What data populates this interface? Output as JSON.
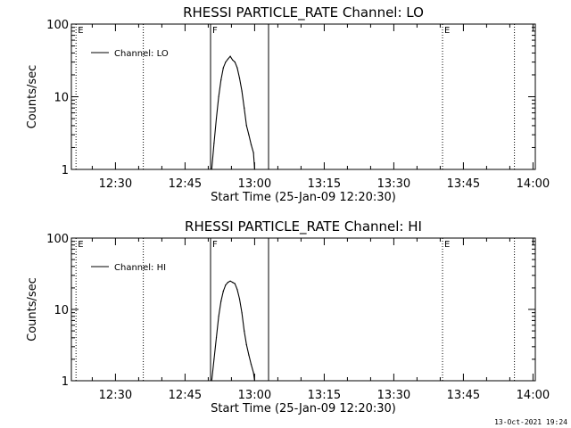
{
  "footer_timestamp": "13-Oct-2021 19:24",
  "chart_data": [
    {
      "type": "line",
      "title": "RHESSI PARTICLE_RATE Channel: LO",
      "xlabel": "Start Time (25-Jan-09 12:20:30)",
      "ylabel": "Counts/sec",
      "yscale": "log",
      "ylim": [
        1,
        100
      ],
      "yticks": [
        "1",
        "10",
        "100"
      ],
      "xlim": [
        "12:20:30",
        "14:00:30"
      ],
      "xticks": [
        "12:30",
        "12:45",
        "13:00",
        "13:15",
        "13:30",
        "13:45",
        "14:00"
      ],
      "legend": {
        "position": "top-left",
        "entries": [
          "Channel: LO"
        ]
      },
      "grid": false,
      "markers": [
        {
          "time": "12:21:30",
          "label": "E",
          "style": "dotted"
        },
        {
          "time": "12:36:00",
          "label": "",
          "style": "dotted"
        },
        {
          "time": "12:50:30",
          "label": "F",
          "style": "solid"
        },
        {
          "time": "13:03:00",
          "label": "",
          "style": "solid"
        },
        {
          "time": "13:40:30",
          "label": "E",
          "style": "dotted"
        },
        {
          "time": "13:56:00",
          "label": "",
          "style": "dotted"
        }
      ],
      "series": [
        {
          "name": "Channel: LO",
          "x": [
            "12:50:45",
            "12:51:15",
            "12:51:45",
            "12:52:15",
            "12:52:45",
            "12:53:15",
            "12:53:45",
            "12:54:15",
            "12:54:45",
            "12:55:15",
            "12:55:45",
            "12:56:15",
            "12:56:45",
            "12:57:15",
            "12:57:45",
            "12:58:15",
            "12:58:45",
            "12:59:15",
            "12:59:45",
            "13:00:00"
          ],
          "values": [
            1,
            2.3,
            5,
            10,
            17,
            25,
            30,
            33,
            36,
            32,
            30,
            25,
            18,
            12,
            7,
            4,
            3,
            2.2,
            1.7,
            1
          ]
        }
      ]
    },
    {
      "type": "line",
      "title": "RHESSI PARTICLE_RATE Channel: HI",
      "xlabel": "Start Time (25-Jan-09 12:20:30)",
      "ylabel": "Counts/sec",
      "yscale": "log",
      "ylim": [
        1,
        100
      ],
      "yticks": [
        "1",
        "10",
        "100"
      ],
      "xlim": [
        "12:20:30",
        "14:00:30"
      ],
      "xticks": [
        "12:30",
        "12:45",
        "13:00",
        "13:15",
        "13:30",
        "13:45",
        "14:00"
      ],
      "legend": {
        "position": "top-left",
        "entries": [
          "Channel: HI"
        ]
      },
      "grid": false,
      "markers": [
        {
          "time": "12:21:30",
          "label": "E",
          "style": "dotted"
        },
        {
          "time": "12:36:00",
          "label": "",
          "style": "dotted"
        },
        {
          "time": "12:50:30",
          "label": "F",
          "style": "solid"
        },
        {
          "time": "13:03:00",
          "label": "",
          "style": "solid"
        },
        {
          "time": "13:40:30",
          "label": "E",
          "style": "dotted"
        },
        {
          "time": "13:56:00",
          "label": "",
          "style": "dotted"
        }
      ],
      "series": [
        {
          "name": "Channel: HI",
          "x": [
            "12:50:45",
            "12:51:15",
            "12:51:45",
            "12:52:15",
            "12:52:45",
            "12:53:15",
            "12:53:45",
            "12:54:15",
            "12:54:45",
            "12:55:15",
            "12:55:45",
            "12:56:15",
            "12:56:45",
            "12:57:15",
            "12:57:45",
            "12:58:15",
            "12:58:45",
            "12:59:15",
            "12:59:45",
            "13:00:00"
          ],
          "values": [
            1,
            2,
            4,
            8,
            13,
            18,
            22,
            24,
            25,
            24,
            23,
            19,
            14,
            9,
            5,
            3.2,
            2.3,
            1.7,
            1.3,
            1
          ]
        }
      ]
    }
  ]
}
